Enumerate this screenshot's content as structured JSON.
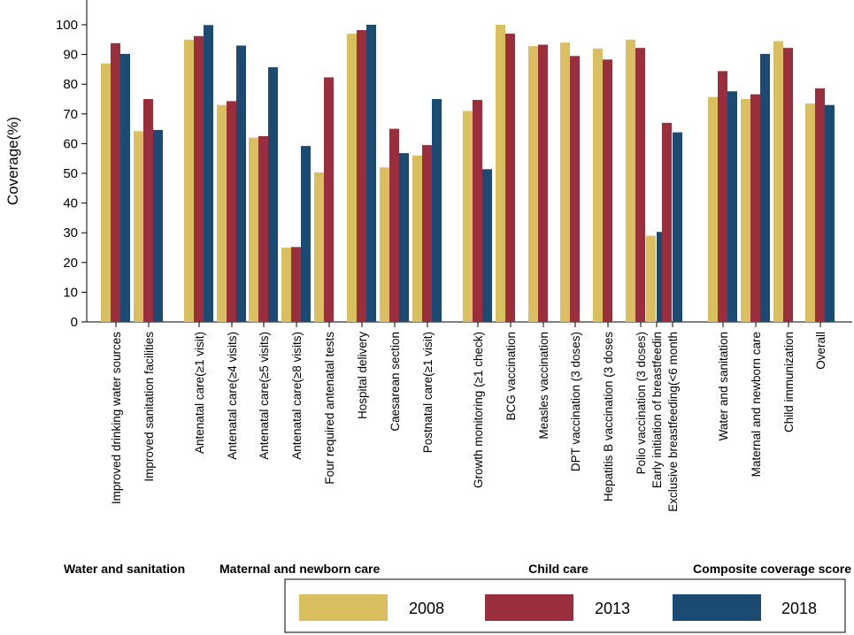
{
  "chart_data": {
    "type": "bar",
    "ylabel": "Coverage(%)",
    "xlabel": "",
    "ylim": [
      0,
      105
    ],
    "yticks": [
      0,
      10,
      20,
      30,
      40,
      50,
      60,
      70,
      80,
      90,
      100
    ],
    "grid": false,
    "legend_position": "bottom-right",
    "categories": [
      "Improved drinking water sources",
      "Improved sanitation facilities",
      "Antenatal care(≥1 visit)",
      "Antenatal care(≥4 visits)",
      "Antenatal care(≥5 visits)",
      "Antenatal care(≥8 visits)",
      "Four required antenatal tests",
      "Hospital delivery",
      "Caesarean section",
      "Postnatal care(≥1 visit)",
      "Growth monitoring (≥1 check)",
      "BCG vaccination",
      "Measles vaccination",
      "DPT vaccination (3 doses)",
      "Hepatitis B vaccination (3 doses",
      "Polio vaccination (3 doses)",
      "Early initiation of breastfeedin",
      "Exclusive breastfeeding(<6 month",
      "Water and sanitation",
      "Maternal and newborn care",
      "Child immunization",
      "Overall"
    ],
    "category_group_index": [
      0,
      0,
      1,
      1,
      1,
      1,
      1,
      1,
      1,
      1,
      2,
      2,
      2,
      2,
      2,
      2,
      2,
      2,
      3,
      3,
      3,
      3
    ],
    "groups": [
      "Water and sanitation",
      "Maternal and newborn care",
      "Child care",
      "Composite coverage score"
    ],
    "series": [
      {
        "name": "2008",
        "color": "#d9bf5f",
        "values": [
          87,
          64.2,
          95,
          73,
          62,
          25,
          50.3,
          97,
          52,
          56,
          71,
          100,
          92.8,
          94,
          92,
          95,
          29,
          null,
          75.7,
          75,
          94.5,
          73.5
        ]
      },
      {
        "name": "2013",
        "color": "#9b2e3d",
        "values": [
          93.8,
          75,
          96.2,
          74.3,
          62.5,
          25.2,
          82.3,
          98.2,
          65,
          59.5,
          74.7,
          97,
          93.3,
          89.5,
          88.3,
          92.2,
          null,
          67,
          84.4,
          76.6,
          92.2,
          78.6
        ]
      },
      {
        "name": "2018",
        "color": "#1b4a73",
        "values": [
          90.2,
          64.6,
          99.9,
          93,
          85.7,
          59.2,
          null,
          100,
          56.8,
          75,
          51.4,
          null,
          null,
          null,
          null,
          null,
          30.3,
          63.8,
          77.6,
          90.2,
          null,
          73
        ]
      }
    ]
  }
}
